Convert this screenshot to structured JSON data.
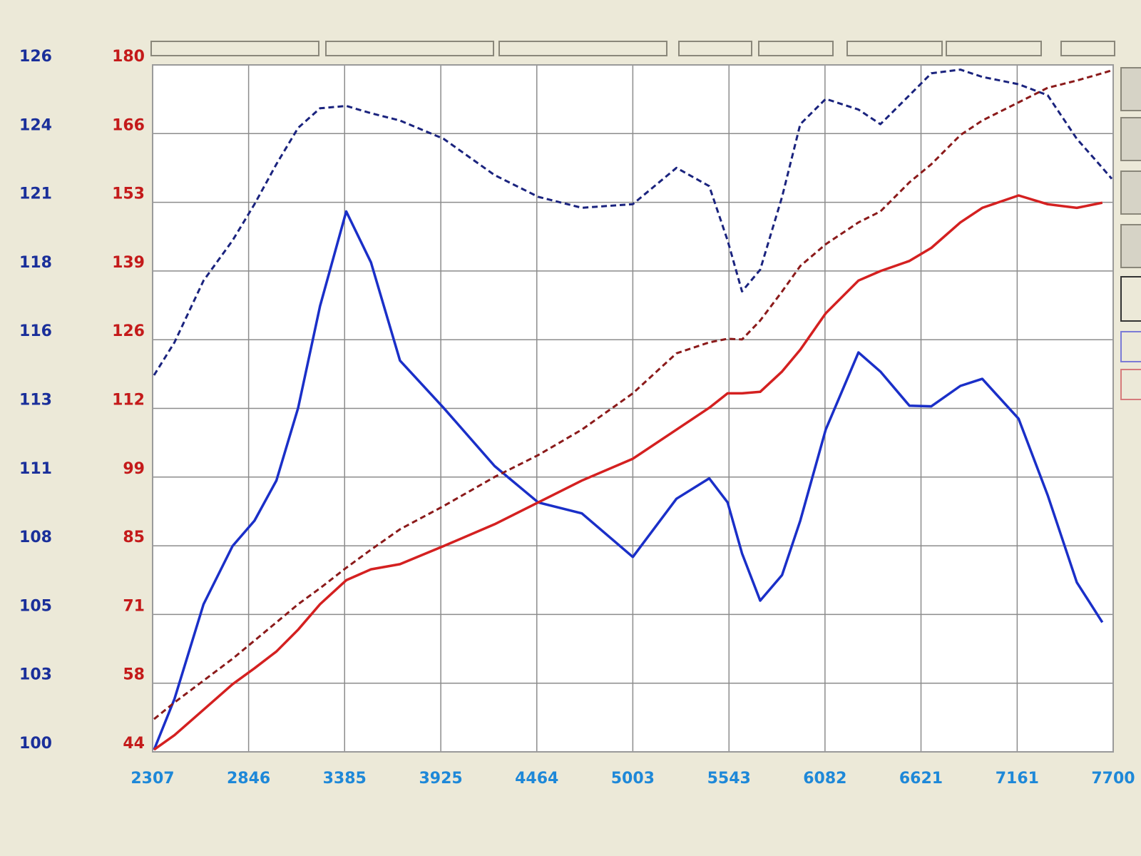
{
  "chart_data": {
    "type": "line",
    "x": [
      2315,
      2430,
      2593,
      2756,
      2879,
      3002,
      3124,
      3247,
      3394,
      3533,
      3696,
      3941,
      4227,
      4472,
      4717,
      5003,
      5248,
      5432,
      5535,
      5616,
      5718,
      5841,
      5943,
      6086,
      6270,
      6393,
      6556,
      6679,
      6842,
      6965,
      7169,
      7332,
      7496,
      7639,
      7692
    ],
    "xlim": [
      2307,
      7700
    ],
    "xticks": [
      2307,
      2846,
      3385,
      3925,
      4464,
      5003,
      5543,
      6082,
      6621,
      7161,
      7700
    ],
    "ylim": [
      44.3,
      180.0
    ],
    "yticks": [
      {
        "value": 44.3,
        "label": "44"
      },
      {
        "value": 57.87,
        "label": "58"
      },
      {
        "value": 71.44,
        "label": "71"
      },
      {
        "value": 85.01,
        "label": "85"
      },
      {
        "value": 98.58,
        "label": "99"
      },
      {
        "value": 112.15,
        "label": "112"
      },
      {
        "value": 125.72,
        "label": "126"
      },
      {
        "value": 139.29,
        "label": "139"
      },
      {
        "value": 152.86,
        "label": "153"
      },
      {
        "value": 166.43,
        "label": "166"
      },
      {
        "value": 180.0,
        "label": "180"
      }
    ],
    "y2lim": [
      100,
      126.3
    ],
    "y2ticks": [
      100,
      {
        "value": 102.63,
        "label": "103"
      },
      {
        "value": 105.26,
        "label": "105"
      },
      {
        "value": 107.89,
        "label": "108"
      },
      {
        "value": 110.52,
        "label": "111"
      },
      {
        "value": 113.15,
        "label": "113"
      },
      {
        "value": 115.78,
        "label": "116"
      },
      {
        "value": 118.41,
        "label": "118"
      },
      {
        "value": 121.04,
        "label": "121"
      },
      {
        "value": 123.67,
        "label": "124"
      },
      {
        "value": 126.3,
        "label": "126"
      }
    ],
    "grid": true,
    "series": [
      {
        "color": "#1a2fc8",
        "axis": "y2",
        "dashed": false,
        "values": [
          100.08,
          102.03,
          105.65,
          107.88,
          108.85,
          110.39,
          113.17,
          117.07,
          120.69,
          118.74,
          114.98,
          113.17,
          110.94,
          109.55,
          109.13,
          107.46,
          109.69,
          110.47,
          109.55,
          107.6,
          105.79,
          106.77,
          108.85,
          112.34,
          115.29,
          114.56,
          113.25,
          113.23,
          114.01,
          114.28,
          112.75,
          109.83,
          106.49,
          104.96,
          null
        ]
      },
      {
        "color": "#1a237e",
        "axis": "y2",
        "dashed": true,
        "values": [
          114.42,
          115.68,
          118.04,
          119.58,
          120.97,
          122.5,
          123.89,
          124.64,
          124.73,
          124.45,
          124.17,
          123.47,
          122.08,
          121.25,
          120.83,
          120.97,
          122.36,
          121.66,
          119.58,
          117.63,
          118.46,
          121.25,
          124.03,
          125.0,
          124.59,
          124.03,
          125.14,
          125.98,
          126.12,
          125.84,
          125.56,
          125.14,
          123.47,
          122.36,
          121.94
        ]
      },
      {
        "color": "#d42020",
        "axis": "y",
        "dashed": false,
        "values": [
          44.73,
          47.6,
          52.63,
          57.66,
          60.82,
          64.13,
          68.44,
          73.47,
          78.21,
          80.36,
          81.37,
          84.96,
          89.27,
          93.58,
          97.89,
          102.2,
          107.95,
          112.26,
          115.13,
          115.13,
          115.42,
          119.44,
          123.75,
          130.93,
          137.4,
          139.27,
          141.28,
          143.86,
          148.89,
          151.76,
          154.21,
          152.48,
          151.76,
          152.77,
          null
        ]
      },
      {
        "color": "#8b1a1a",
        "axis": "y",
        "dashed": true,
        "values": [
          50.77,
          54.07,
          58.38,
          62.69,
          66.28,
          69.87,
          73.47,
          76.63,
          80.65,
          84.24,
          88.26,
          92.86,
          98.61,
          102.92,
          107.95,
          115.13,
          123.03,
          125.19,
          125.91,
          125.76,
          129.5,
          135.25,
          140.28,
          144.58,
          148.89,
          151.05,
          156.8,
          160.39,
          166.13,
          169.01,
          172.6,
          175.47,
          176.91,
          178.35,
          178.92
        ]
      }
    ]
  }
}
